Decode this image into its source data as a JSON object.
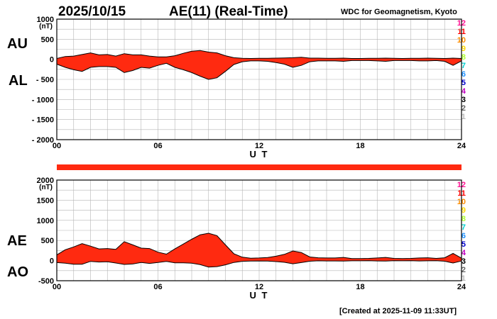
{
  "header": {
    "date": "2025/10/15",
    "title": "AE(11) (Real-Time)",
    "source": "WDC for Geomagnetism, Kyoto"
  },
  "footer": {
    "created": "[Created at 2025-11-09 11:33UT]"
  },
  "colors": {
    "fill": "#ff2a10",
    "line": "#000000",
    "grid": "#b4b4b4",
    "bar": "#ff2a10"
  },
  "legend": {
    "items": [
      {
        "label": "12",
        "color": "#ff1493"
      },
      {
        "label": "11",
        "color": "#ff0000"
      },
      {
        "label": "10",
        "color": "#ff8c00"
      },
      {
        "label": "9",
        "color": "#ffd700"
      },
      {
        "label": "8",
        "color": "#adff2f"
      },
      {
        "label": "7",
        "color": "#00d0d0"
      },
      {
        "label": "6",
        "color": "#1e90ff"
      },
      {
        "label": "5",
        "color": "#0000cd"
      },
      {
        "label": "4",
        "color": "#c000c0"
      },
      {
        "label": "3",
        "color": "#000000"
      },
      {
        "label": "2",
        "color": "#666666"
      },
      {
        "label": "1",
        "color": "#bbbbbb"
      }
    ]
  },
  "chart_data": [
    {
      "type": "area",
      "panel": "AU/AL",
      "labels": {
        "upper": "AU",
        "lower": "AL"
      },
      "xlabel": "U T",
      "ylabel": "(nT)",
      "xlim": [
        0,
        24
      ],
      "ylim": [
        -2000,
        1000
      ],
      "xticks": [
        "00",
        "06",
        "12",
        "18",
        "24"
      ],
      "yticks": [
        "1000",
        "500",
        "0",
        "- 500",
        "- 1000",
        "- 1500",
        "- 2000"
      ],
      "grid": true,
      "series": [
        {
          "name": "AU",
          "x": [
            0,
            0.5,
            1,
            1.5,
            2,
            2.5,
            3,
            3.5,
            4,
            4.5,
            5,
            5.5,
            6,
            6.5,
            7,
            7.5,
            8,
            8.5,
            9,
            9.5,
            10,
            10.5,
            11,
            11.5,
            12,
            12.5,
            13,
            13.5,
            14,
            14.5,
            15,
            15.5,
            16,
            16.5,
            17,
            17.5,
            18,
            18.5,
            19,
            19.5,
            20,
            20.5,
            21,
            21.5,
            22,
            22.5,
            23,
            23.5,
            24
          ],
          "values": [
            20,
            70,
            80,
            120,
            160,
            110,
            120,
            80,
            140,
            110,
            110,
            80,
            60,
            60,
            90,
            150,
            200,
            220,
            180,
            160,
            90,
            40,
            25,
            20,
            25,
            25,
            30,
            35,
            40,
            50,
            30,
            30,
            25,
            25,
            30,
            20,
            20,
            25,
            25,
            30,
            25,
            20,
            25,
            25,
            30,
            25,
            20,
            30,
            20
          ]
        },
        {
          "name": "AL",
          "x": [
            0,
            0.5,
            1,
            1.5,
            2,
            2.5,
            3,
            3.5,
            4,
            4.5,
            5,
            5.5,
            6,
            6.5,
            7,
            7.5,
            8,
            8.5,
            9,
            9.5,
            10,
            10.5,
            11,
            11.5,
            12,
            12.5,
            13,
            13.5,
            14,
            14.5,
            15,
            15.5,
            16,
            16.5,
            17,
            17.5,
            18,
            18.5,
            19,
            19.5,
            20,
            20.5,
            21,
            21.5,
            22,
            22.5,
            23,
            23.5,
            24
          ],
          "values": [
            -120,
            -200,
            -260,
            -300,
            -200,
            -180,
            -180,
            -200,
            -330,
            -280,
            -200,
            -220,
            -150,
            -100,
            -200,
            -260,
            -330,
            -420,
            -500,
            -460,
            -300,
            -130,
            -60,
            -40,
            -40,
            -50,
            -80,
            -120,
            -200,
            -150,
            -60,
            -40,
            -40,
            -40,
            -50,
            -30,
            -30,
            -30,
            -40,
            -50,
            -30,
            -30,
            -30,
            -40,
            -40,
            -30,
            -50,
            -150,
            -40
          ]
        }
      ]
    },
    {
      "type": "area",
      "panel": "AE/AO",
      "labels": {
        "upper": "AE",
        "lower": "AO"
      },
      "xlabel": "U T",
      "ylabel": "(nT)",
      "xlim": [
        0,
        24
      ],
      "ylim": [
        -500,
        2000
      ],
      "xticks": [
        "00",
        "06",
        "12",
        "18",
        "24"
      ],
      "yticks": [
        "2000",
        "1500",
        "1000",
        "500",
        "0",
        "-500"
      ],
      "grid": true,
      "series": [
        {
          "name": "AE",
          "x": [
            0,
            0.5,
            1,
            1.5,
            2,
            2.5,
            3,
            3.5,
            4,
            4.5,
            5,
            5.5,
            6,
            6.5,
            7,
            7.5,
            8,
            8.5,
            9,
            9.5,
            10,
            10.5,
            11,
            11.5,
            12,
            12.5,
            13,
            13.5,
            14,
            14.5,
            15,
            15.5,
            16,
            16.5,
            17,
            17.5,
            18,
            18.5,
            19,
            19.5,
            20,
            20.5,
            21,
            21.5,
            22,
            22.5,
            23,
            23.5,
            24
          ],
          "values": [
            140,
            270,
            340,
            420,
            360,
            290,
            300,
            280,
            470,
            390,
            310,
            300,
            210,
            160,
            290,
            410,
            530,
            640,
            680,
            620,
            390,
            170,
            85,
            60,
            65,
            75,
            110,
            155,
            240,
            200,
            90,
            70,
            65,
            65,
            80,
            50,
            50,
            55,
            65,
            80,
            55,
            50,
            55,
            65,
            70,
            55,
            70,
            180,
            60
          ]
        },
        {
          "name": "AO",
          "x": [
            0,
            0.5,
            1,
            1.5,
            2,
            2.5,
            3,
            3.5,
            4,
            4.5,
            5,
            5.5,
            6,
            6.5,
            7,
            7.5,
            8,
            8.5,
            9,
            9.5,
            10,
            10.5,
            11,
            11.5,
            12,
            12.5,
            13,
            13.5,
            14,
            14.5,
            15,
            15.5,
            16,
            16.5,
            17,
            17.5,
            18,
            18.5,
            19,
            19.5,
            20,
            20.5,
            21,
            21.5,
            22,
            22.5,
            23,
            23.5,
            24
          ],
          "values": [
            -50,
            -65,
            -90,
            -90,
            -20,
            -35,
            -30,
            -60,
            -95,
            -85,
            -45,
            -70,
            -45,
            -20,
            -55,
            -55,
            -65,
            -100,
            -160,
            -150,
            -105,
            -45,
            -18,
            -10,
            -8,
            -12,
            -25,
            -42,
            -80,
            -50,
            -15,
            -5,
            -8,
            -8,
            -10,
            -5,
            -5,
            -3,
            -8,
            -10,
            -3,
            -5,
            -3,
            -8,
            -5,
            -3,
            -15,
            -60,
            -10
          ]
        }
      ]
    }
  ]
}
